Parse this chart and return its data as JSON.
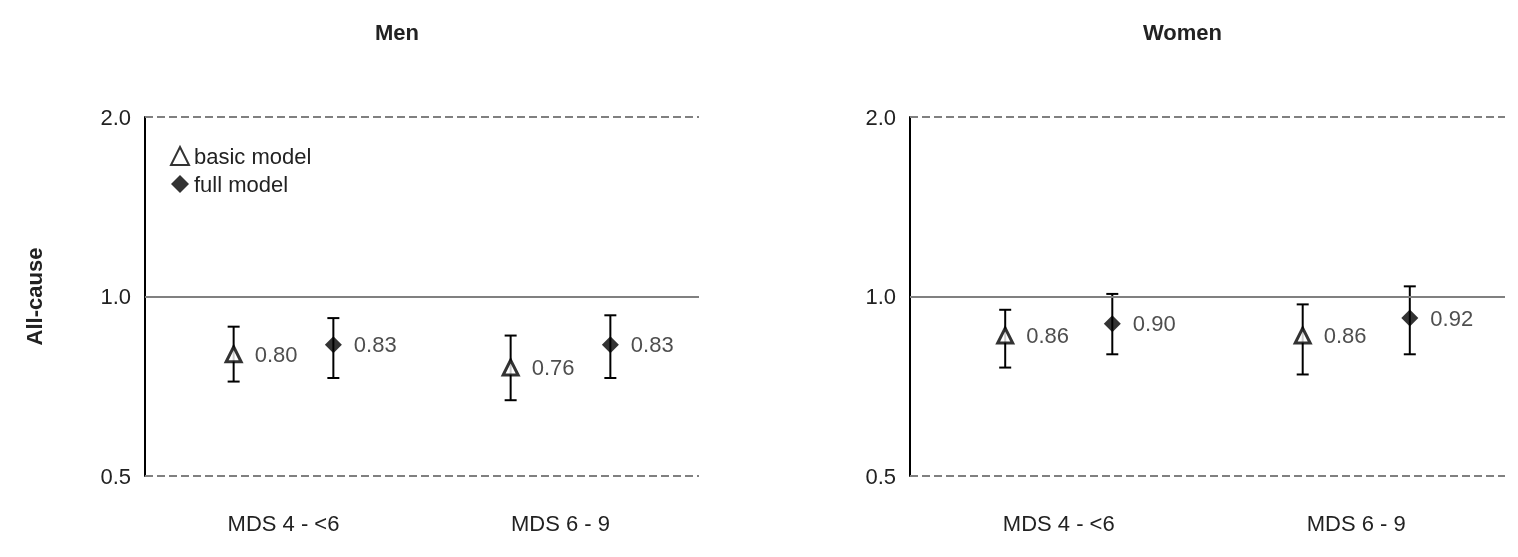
{
  "chart_data": [
    {
      "type": "scatter",
      "title": "Men",
      "ylabel": "All-cause",
      "categories": [
        "MDS 4 - <6",
        "MDS 6 - 9"
      ],
      "log": "y",
      "ylim": [
        0.5,
        2
      ],
      "yticks": [
        {
          "value": 0.5,
          "label": "0.5"
        },
        {
          "value": 1,
          "label": "1.0"
        },
        {
          "value": 2,
          "label": "2.0"
        }
      ],
      "legend": "top left",
      "ref_lines": [
        {
          "axis": "y",
          "value": 2,
          "color": "#808080",
          "line_style": "dashed"
        },
        {
          "axis": "y",
          "value": 1,
          "color": "#808080",
          "line_style": "solid"
        },
        {
          "axis": "y",
          "value": 0.5,
          "color": "#808080",
          "line_style": "dashed"
        }
      ],
      "series": [
        {
          "name": "basic model",
          "color": "#000000",
          "marker": "triangle",
          "values": [
            0.8,
            0.76
          ],
          "value_labels": [
            "0.80",
            "0.76"
          ],
          "errors": [
            [
              0.72,
              0.89
            ],
            [
              0.67,
              0.86
            ]
          ]
        },
        {
          "name": "full model",
          "color": "#000000",
          "marker": "diamond",
          "values": [
            0.83,
            0.83
          ],
          "value_labels": [
            "0.83",
            "0.83"
          ],
          "errors": [
            [
              0.73,
              0.92
            ],
            [
              0.73,
              0.93
            ]
          ]
        }
      ]
    },
    {
      "type": "scatter",
      "title": "Women",
      "categories": [
        "MDS 4 - <6",
        "MDS 6 - 9"
      ],
      "log": "y",
      "ylim": [
        0.5,
        2
      ],
      "yticks": [
        {
          "value": 0.5,
          "label": "0.5"
        },
        {
          "value": 1,
          "label": "1.0"
        },
        {
          "value": 2,
          "label": "2.0"
        }
      ],
      "ref_lines": [
        {
          "axis": "y",
          "value": 2,
          "color": "#808080",
          "line_style": "dashed"
        },
        {
          "axis": "y",
          "value": 1,
          "color": "#808080",
          "line_style": "solid"
        },
        {
          "axis": "y",
          "value": 0.5,
          "color": "#808080",
          "line_style": "dashed"
        }
      ],
      "series": [
        {
          "color": "#000000",
          "marker": "triangle",
          "values": [
            0.86,
            0.86
          ],
          "value_labels": [
            "0.86",
            "0.86"
          ],
          "errors": [
            [
              0.76,
              0.95
            ],
            [
              0.74,
              0.97
            ]
          ]
        },
        {
          "color": "#000000",
          "marker": "diamond",
          "values": [
            0.9,
            0.92
          ],
          "value_labels": [
            "0.90",
            "0.92"
          ],
          "errors": [
            [
              0.8,
              1.01
            ],
            [
              0.8,
              1.04
            ]
          ]
        }
      ]
    }
  ]
}
